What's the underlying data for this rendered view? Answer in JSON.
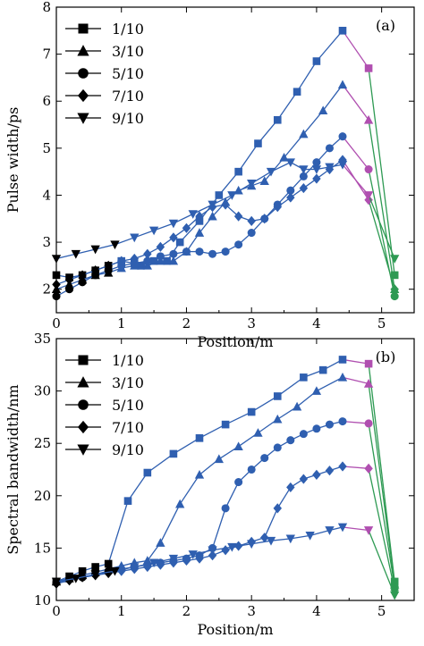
{
  "chart_data": [
    {
      "type": "line",
      "panel_label": "(a)",
      "title": "",
      "xlabel": "Position/m",
      "ylabel": "Pulse width/ps",
      "xlim": [
        0,
        5.5
      ],
      "ylim": [
        1.5,
        8
      ],
      "xticks": [
        0,
        1,
        2,
        3,
        4,
        5
      ],
      "yticks": [
        2,
        3,
        4,
        5,
        6,
        7,
        8
      ],
      "legend_position": "top-left",
      "colors": {
        "main": "#2f5fb0",
        "pink": "#b04fb0",
        "green": "#2e9a53",
        "red": "#ee2a2a",
        "black": "#000000"
      },
      "series": [
        {
          "name": "1/10",
          "marker": "square",
          "x": [
            0,
            0.2,
            0.4,
            0.6,
            0.8,
            1.0,
            1.2,
            1.3,
            1.5,
            1.7,
            1.9,
            2.2,
            2.5,
            2.8,
            3.1,
            3.4,
            3.7,
            4.0,
            4.4,
            4.8,
            5.2
          ],
          "y": [
            2.3,
            2.25,
            2.3,
            2.4,
            2.5,
            2.6,
            2.55,
            2.5,
            2.6,
            2.6,
            3.0,
            3.45,
            4.0,
            4.5,
            5.1,
            5.6,
            6.2,
            6.85,
            7.5,
            6.7,
            2.3
          ]
        },
        {
          "name": "3/10",
          "marker": "triangle",
          "x": [
            0,
            0.2,
            0.4,
            0.6,
            0.8,
            1.0,
            1.2,
            1.4,
            1.6,
            1.8,
            2.0,
            2.2,
            2.4,
            2.6,
            2.8,
            3.0,
            3.2,
            3.5,
            3.8,
            4.1,
            4.4,
            4.8,
            5.2
          ],
          "y": [
            2.0,
            2.1,
            2.2,
            2.3,
            2.35,
            2.45,
            2.5,
            2.5,
            2.6,
            2.6,
            2.8,
            3.2,
            3.55,
            3.85,
            4.1,
            4.2,
            4.3,
            4.8,
            5.3,
            5.8,
            6.35,
            5.6,
            2.0
          ]
        },
        {
          "name": "5/10",
          "marker": "circle",
          "x": [
            0,
            0.2,
            0.4,
            0.6,
            0.8,
            1.0,
            1.2,
            1.4,
            1.6,
            1.8,
            2.0,
            2.2,
            2.4,
            2.6,
            2.8,
            3.0,
            3.2,
            3.4,
            3.6,
            3.8,
            4.0,
            4.2,
            4.4,
            4.8,
            5.2
          ],
          "y": [
            1.85,
            2.0,
            2.15,
            2.3,
            2.4,
            2.5,
            2.55,
            2.6,
            2.7,
            2.75,
            2.8,
            2.8,
            2.75,
            2.8,
            2.95,
            3.2,
            3.5,
            3.8,
            4.1,
            4.4,
            4.7,
            5.0,
            5.25,
            4.55,
            1.85
          ]
        },
        {
          "name": "7/10",
          "marker": "diamond",
          "x": [
            0,
            0.2,
            0.4,
            0.6,
            0.8,
            1.0,
            1.2,
            1.4,
            1.6,
            1.8,
            2.0,
            2.2,
            2.4,
            2.6,
            2.8,
            3.0,
            3.2,
            3.4,
            3.6,
            3.8,
            4.0,
            4.2,
            4.4,
            4.8,
            5.2
          ],
          "y": [
            2.1,
            2.2,
            2.3,
            2.4,
            2.5,
            2.6,
            2.65,
            2.75,
            2.9,
            3.1,
            3.3,
            3.55,
            3.75,
            3.8,
            3.55,
            3.45,
            3.5,
            3.75,
            3.95,
            4.15,
            4.35,
            4.55,
            4.75,
            3.9,
            2.0
          ]
        },
        {
          "name": "9/10",
          "marker": "triangle-down",
          "x": [
            0,
            0.3,
            0.6,
            0.9,
            1.2,
            1.5,
            1.8,
            2.1,
            2.4,
            2.7,
            3.0,
            3.3,
            3.6,
            3.8,
            4.0,
            4.2,
            4.4,
            4.8,
            5.2
          ],
          "y": [
            2.65,
            2.75,
            2.85,
            2.95,
            3.1,
            3.25,
            3.4,
            3.6,
            3.8,
            4.0,
            4.25,
            4.5,
            4.7,
            4.55,
            4.55,
            4.6,
            4.65,
            4.0,
            2.65
          ]
        }
      ]
    },
    {
      "type": "line",
      "panel_label": "(b)",
      "title": "",
      "xlabel": "Position/m",
      "ylabel": "Spectral bandwidth/nm",
      "xlim": [
        0,
        5.5
      ],
      "ylim": [
        10,
        35
      ],
      "xticks": [
        0,
        1,
        2,
        3,
        4,
        5
      ],
      "yticks": [
        10,
        15,
        20,
        25,
        30,
        35
      ],
      "legend_position": "top-left",
      "colors": {
        "main": "#2f5fb0",
        "pink": "#b04fb0",
        "green": "#2e9a53",
        "red": "#ee2a2a",
        "black": "#000000"
      },
      "series": [
        {
          "name": "1/10",
          "marker": "square",
          "x": [
            0,
            0.2,
            0.4,
            0.6,
            0.8,
            1.1,
            1.4,
            1.8,
            2.2,
            2.6,
            3.0,
            3.4,
            3.8,
            4.1,
            4.4,
            4.8,
            5.2
          ],
          "y": [
            11.8,
            12.3,
            12.8,
            13.2,
            13.5,
            19.5,
            22.2,
            24.0,
            25.5,
            26.8,
            28.0,
            29.5,
            31.3,
            32.0,
            33.0,
            32.6,
            11.8
          ]
        },
        {
          "name": "3/10",
          "marker": "triangle",
          "x": [
            0,
            0.2,
            0.4,
            0.6,
            0.8,
            1.0,
            1.2,
            1.4,
            1.6,
            1.9,
            2.2,
            2.5,
            2.8,
            3.1,
            3.4,
            3.7,
            4.0,
            4.4,
            4.8,
            5.2
          ],
          "y": [
            11.8,
            12.1,
            12.4,
            12.7,
            13.0,
            13.3,
            13.6,
            13.8,
            15.5,
            19.2,
            22.0,
            23.5,
            24.7,
            26.0,
            27.3,
            28.5,
            30.0,
            31.3,
            30.7,
            11.5
          ]
        },
        {
          "name": "5/10",
          "marker": "circle",
          "x": [
            0,
            0.2,
            0.4,
            0.6,
            0.8,
            1.0,
            1.2,
            1.4,
            1.6,
            1.8,
            2.0,
            2.2,
            2.4,
            2.6,
            2.8,
            3.0,
            3.2,
            3.4,
            3.6,
            3.8,
            4.0,
            4.2,
            4.4,
            4.8,
            5.2
          ],
          "y": [
            11.7,
            12.0,
            12.2,
            12.5,
            12.8,
            13.0,
            13.2,
            13.4,
            13.6,
            13.8,
            14.0,
            14.3,
            15.0,
            18.8,
            21.3,
            22.5,
            23.6,
            24.6,
            25.3,
            25.9,
            26.4,
            26.8,
            27.1,
            26.9,
            11.3
          ]
        },
        {
          "name": "7/10",
          "marker": "diamond",
          "x": [
            0,
            0.2,
            0.4,
            0.6,
            0.8,
            1.0,
            1.2,
            1.4,
            1.6,
            1.8,
            2.0,
            2.2,
            2.4,
            2.6,
            2.8,
            3.0,
            3.2,
            3.4,
            3.6,
            3.8,
            4.0,
            4.2,
            4.4,
            4.8,
            5.2
          ],
          "y": [
            11.6,
            11.9,
            12.2,
            12.4,
            12.6,
            12.8,
            13.0,
            13.2,
            13.4,
            13.6,
            13.8,
            14.0,
            14.3,
            14.8,
            15.2,
            15.6,
            16.0,
            18.8,
            20.8,
            21.6,
            22.0,
            22.4,
            22.8,
            22.6,
            11.0
          ]
        },
        {
          "name": "9/10",
          "marker": "triangle-down",
          "x": [
            0,
            0.3,
            0.6,
            0.9,
            1.2,
            1.5,
            1.8,
            2.1,
            2.4,
            2.7,
            3.0,
            3.3,
            3.6,
            3.9,
            4.2,
            4.4,
            4.8,
            5.2
          ],
          "y": [
            11.8,
            12.1,
            12.5,
            12.8,
            13.2,
            13.6,
            14.0,
            14.4,
            14.8,
            15.1,
            15.4,
            15.7,
            15.9,
            16.2,
            16.7,
            17.0,
            16.7,
            10.5
          ]
        }
      ]
    }
  ]
}
